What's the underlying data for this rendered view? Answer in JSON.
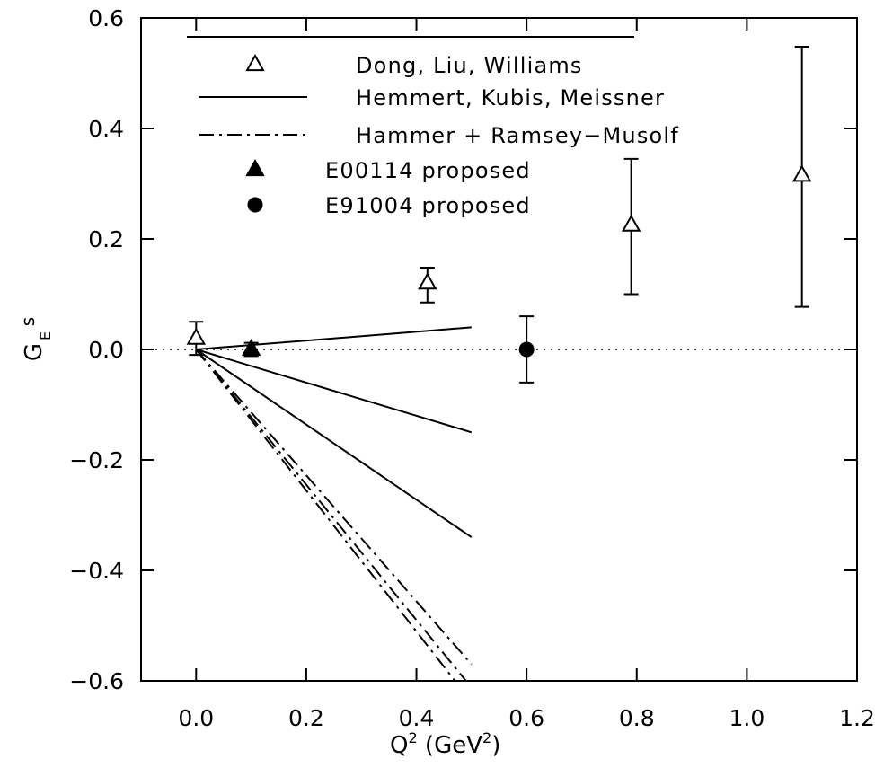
{
  "chart_data": {
    "type": "scatter",
    "xlabel": {
      "main": "Q",
      "sup1": "2",
      "paren_open": " (GeV",
      "sup2": "2",
      "paren_close": ")"
    },
    "ylabel": {
      "main": "G",
      "sub": "E",
      "sup": "s"
    },
    "xlim": [
      -0.1,
      1.2
    ],
    "ylim": [
      -0.6,
      0.6
    ],
    "xticks": [
      0.0,
      0.2,
      0.4,
      0.6,
      0.8,
      1.0,
      1.2
    ],
    "xtick_labels": [
      "0.0",
      "0.2",
      "0.4",
      "0.6",
      "0.8",
      "1.0",
      "1.2"
    ],
    "yticks": [
      -0.6,
      -0.4,
      -0.2,
      0.0,
      0.2,
      0.4,
      0.6
    ],
    "ytick_labels": [
      "−0.6",
      "−0.4",
      "−0.2",
      "0.0",
      "0.2",
      "0.4",
      "0.6"
    ],
    "reference_line_y": 0.0,
    "legend": [
      {
        "label": "Dong, Liu, Williams",
        "marker": "open-triangle"
      },
      {
        "label": "Hemmert, Kubis, Meissner",
        "line": "solid"
      },
      {
        "label": "Hammer + Ramsey−Musolf",
        "line": "dashdot"
      },
      {
        "label": "E00114 proposed",
        "marker": "filled-triangle"
      },
      {
        "label": "E91004 proposed",
        "marker": "filled-circle"
      }
    ],
    "series": [
      {
        "name": "Dong, Liu, Williams",
        "marker": "open-triangle",
        "points": [
          {
            "x": 0.0,
            "y": 0.02,
            "ylo": -0.01,
            "yhi": 0.05
          },
          {
            "x": 0.42,
            "y": 0.12,
            "ylo": 0.085,
            "yhi": 0.148
          },
          {
            "x": 0.79,
            "y": 0.225,
            "ylo": 0.1,
            "yhi": 0.345
          },
          {
            "x": 1.1,
            "y": 0.315,
            "ylo": 0.077,
            "yhi": 0.548
          }
        ]
      },
      {
        "name": "E00114 proposed",
        "marker": "filled-triangle",
        "points": [
          {
            "x": 0.1,
            "y": 0.0,
            "ylo": -0.012,
            "yhi": 0.012
          }
        ]
      },
      {
        "name": "E91004 proposed",
        "marker": "filled-circle",
        "points": [
          {
            "x": 0.6,
            "y": 0.0,
            "ylo": -0.06,
            "yhi": 0.06
          }
        ]
      },
      {
        "name": "Hemmert, Kubis, Meissner",
        "line": "solid",
        "curves": [
          [
            [
              0.0,
              0.0
            ],
            [
              0.5,
              0.04
            ]
          ],
          [
            [
              0.0,
              0.0
            ],
            [
              0.5,
              -0.15
            ]
          ],
          [
            [
              0.0,
              0.0
            ],
            [
              0.5,
              -0.34
            ]
          ]
        ]
      },
      {
        "name": "Hammer + Ramsey−Musolf",
        "line": "dashdot",
        "curves": [
          [
            [
              0.0,
              0.0
            ],
            [
              0.5,
              -0.57
            ]
          ],
          [
            [
              0.0,
              0.0
            ],
            [
              0.49,
              -0.6
            ]
          ],
          [
            [
              0.0,
              0.0
            ],
            [
              0.47,
              -0.6
            ]
          ]
        ]
      }
    ]
  }
}
